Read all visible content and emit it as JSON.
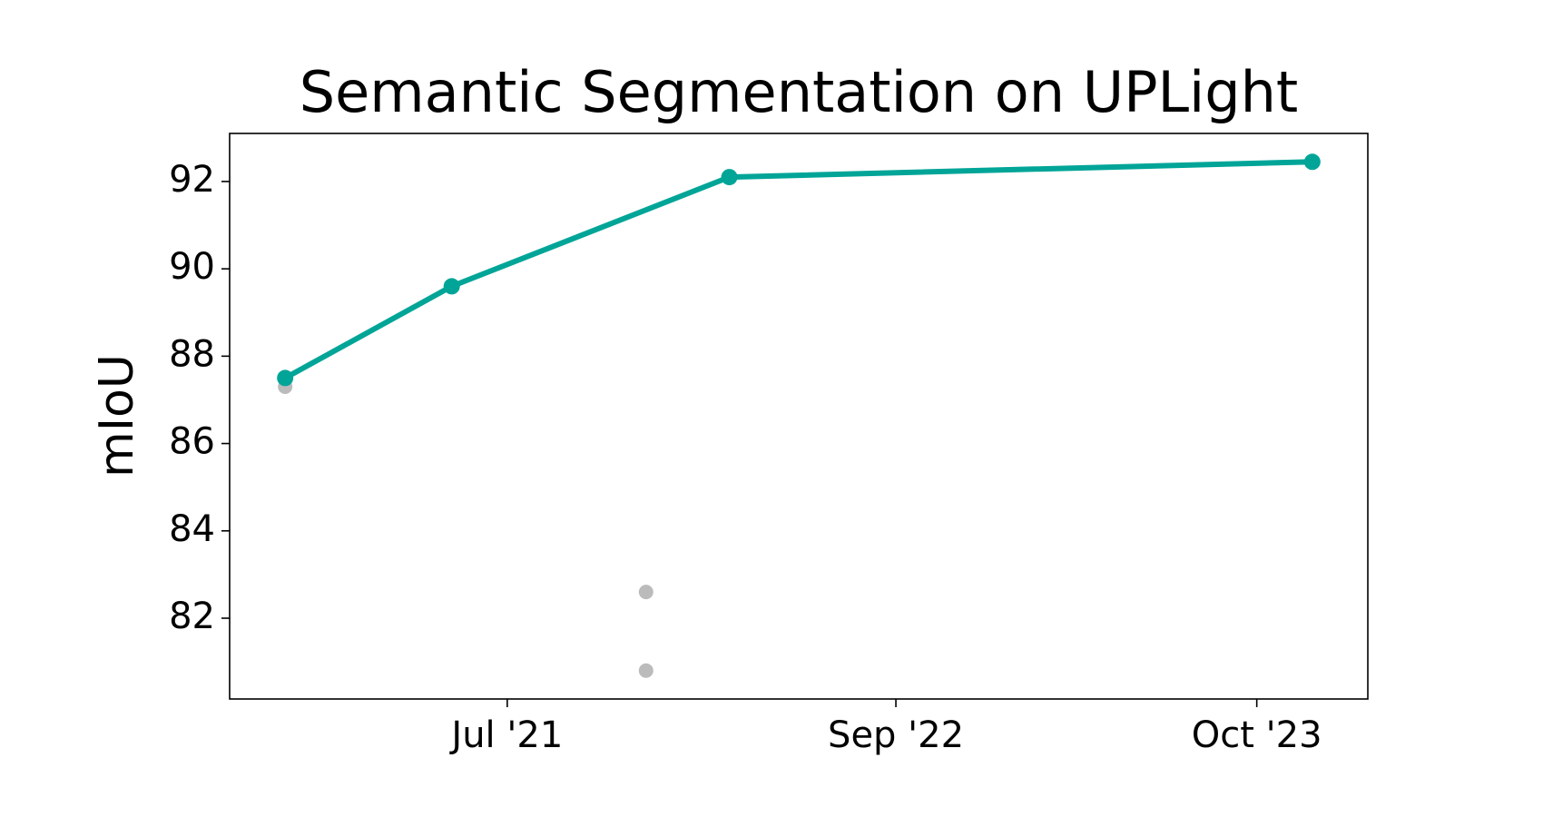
{
  "chart_data": {
    "type": "line",
    "title": "Semantic Segmentation on UPLight",
    "y_label": "mIoU",
    "xlim": [
      "2020-09",
      "2024-02"
    ],
    "xticks": [
      {
        "value": "2021-07",
        "label": "Jul '21"
      },
      {
        "value": "2022-09",
        "label": "Sep '22"
      },
      {
        "value": "2023-10",
        "label": "Oct '23"
      }
    ],
    "ylim": [
      80.15,
      93.1
    ],
    "yticks": [
      82,
      84,
      86,
      88,
      90,
      92
    ],
    "grid": false,
    "series": [
      {
        "color": "#bbbbbb",
        "style": "scatter",
        "x": [
          "2020-11",
          "2021-12",
          "2021-12"
        ],
        "values": [
          87.3,
          82.6,
          80.8
        ]
      },
      {
        "color": "#00a598",
        "style": "line",
        "x": [
          "2020-11",
          "2021-05",
          "2022-03",
          "2023-12"
        ],
        "values": [
          87.5,
          89.6,
          92.1,
          92.45
        ]
      }
    ]
  }
}
